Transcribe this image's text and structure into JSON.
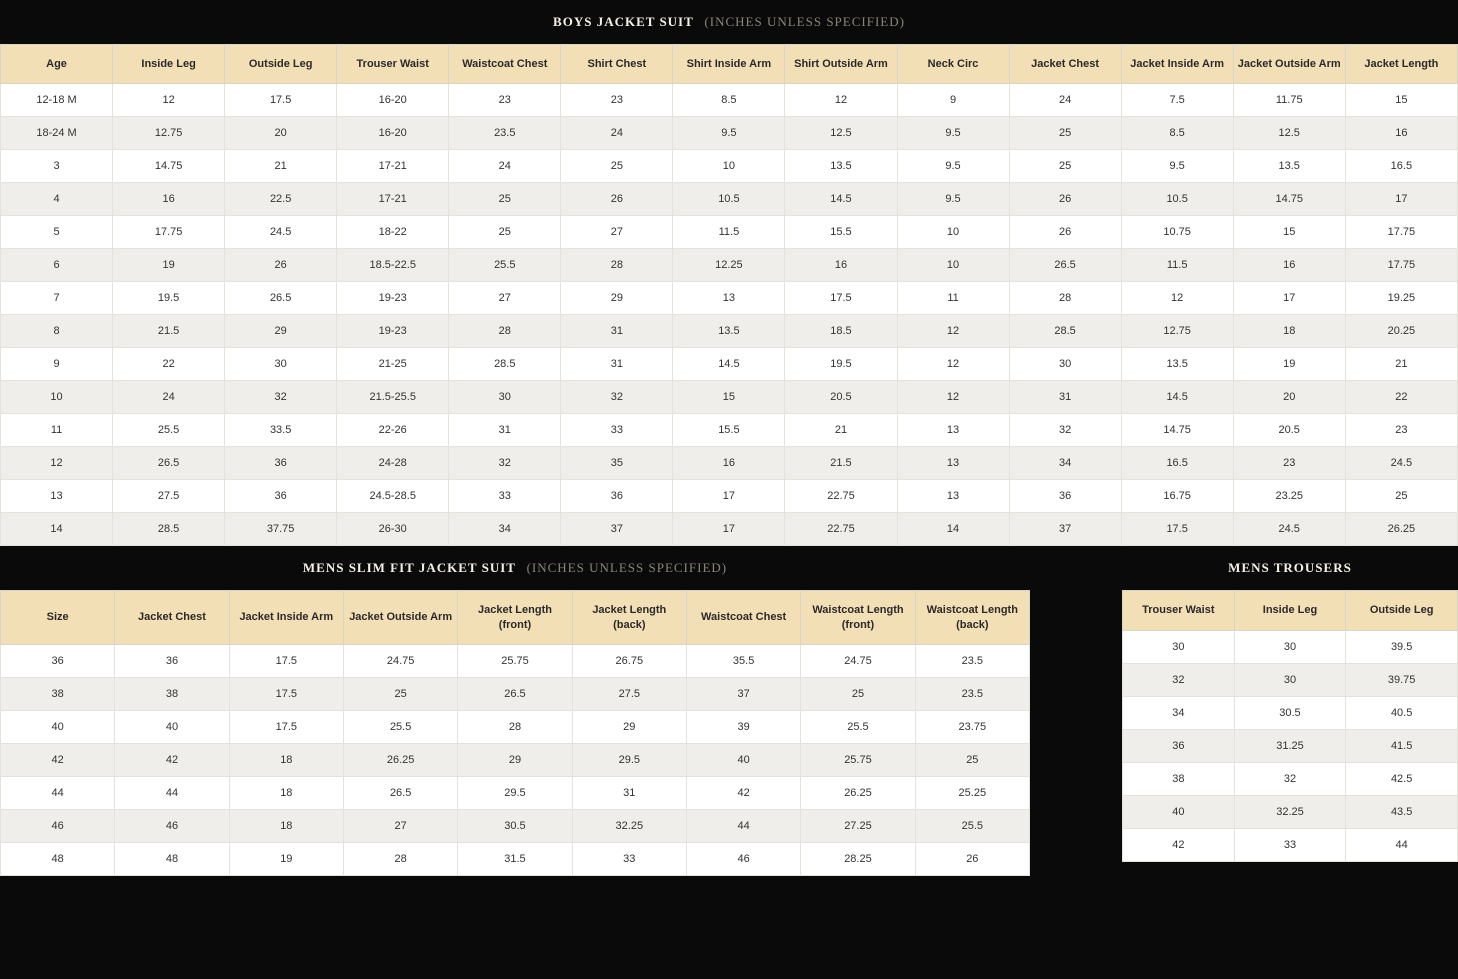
{
  "boys": {
    "title": "BOYS JACKET SUIT",
    "subtitle": "(INCHES UNLESS SPECIFIED)",
    "columns": [
      "Age",
      "Inside Leg",
      "Outside Leg",
      "Trouser Waist",
      "Waistcoat Chest",
      "Shirt Chest",
      "Shirt Inside Arm",
      "Shirt Outside Arm",
      "Neck Circ",
      "Jacket Chest",
      "Jacket Inside Arm",
      "Jacket Outside Arm",
      "Jacket Length"
    ],
    "rows": [
      [
        "12-18 M",
        "12",
        "17.5",
        "16-20",
        "23",
        "23",
        "8.5",
        "12",
        "9",
        "24",
        "7.5",
        "11.75",
        "15"
      ],
      [
        "18-24 M",
        "12.75",
        "20",
        "16-20",
        "23.5",
        "24",
        "9.5",
        "12.5",
        "9.5",
        "25",
        "8.5",
        "12.5",
        "16"
      ],
      [
        "3",
        "14.75",
        "21",
        "17-21",
        "24",
        "25",
        "10",
        "13.5",
        "9.5",
        "25",
        "9.5",
        "13.5",
        "16.5"
      ],
      [
        "4",
        "16",
        "22.5",
        "17-21",
        "25",
        "26",
        "10.5",
        "14.5",
        "9.5",
        "26",
        "10.5",
        "14.75",
        "17"
      ],
      [
        "5",
        "17.75",
        "24.5",
        "18-22",
        "25",
        "27",
        "11.5",
        "15.5",
        "10",
        "26",
        "10.75",
        "15",
        "17.75"
      ],
      [
        "6",
        "19",
        "26",
        "18.5-22.5",
        "25.5",
        "28",
        "12.25",
        "16",
        "10",
        "26.5",
        "11.5",
        "16",
        "17.75"
      ],
      [
        "7",
        "19.5",
        "26.5",
        "19-23",
        "27",
        "29",
        "13",
        "17.5",
        "11",
        "28",
        "12",
        "17",
        "19.25"
      ],
      [
        "8",
        "21.5",
        "29",
        "19-23",
        "28",
        "31",
        "13.5",
        "18.5",
        "12",
        "28.5",
        "12.75",
        "18",
        "20.25"
      ],
      [
        "9",
        "22",
        "30",
        "21-25",
        "28.5",
        "31",
        "14.5",
        "19.5",
        "12",
        "30",
        "13.5",
        "19",
        "21"
      ],
      [
        "10",
        "24",
        "32",
        "21.5-25.5",
        "30",
        "32",
        "15",
        "20.5",
        "12",
        "31",
        "14.5",
        "20",
        "22"
      ],
      [
        "11",
        "25.5",
        "33.5",
        "22-26",
        "31",
        "33",
        "15.5",
        "21",
        "13",
        "32",
        "14.75",
        "20.5",
        "23"
      ],
      [
        "12",
        "26.5",
        "36",
        "24-28",
        "32",
        "35",
        "16",
        "21.5",
        "13",
        "34",
        "16.5",
        "23",
        "24.5"
      ],
      [
        "13",
        "27.5",
        "36",
        "24.5-28.5",
        "33",
        "36",
        "17",
        "22.75",
        "13",
        "36",
        "16.75",
        "23.25",
        "25"
      ],
      [
        "14",
        "28.5",
        "37.75",
        "26-30",
        "34",
        "37",
        "17",
        "22.75",
        "14",
        "37",
        "17.5",
        "24.5",
        "26.25"
      ]
    ]
  },
  "mens_slim": {
    "title": "MENS SLIM FIT JACKET SUIT",
    "subtitle": "(INCHES UNLESS SPECIFIED)",
    "columns": [
      "Size",
      "Jacket Chest",
      "Jacket Inside Arm",
      "Jacket Outside Arm",
      "Jacket Length (front)",
      "Jacket Length (back)",
      "Waistcoat Chest",
      "Waistcoat Length (front)",
      "Waistcoat Length (back)"
    ],
    "rows": [
      [
        "36",
        "36",
        "17.5",
        "24.75",
        "25.75",
        "26.75",
        "35.5",
        "24.75",
        "23.5"
      ],
      [
        "38",
        "38",
        "17.5",
        "25",
        "26.5",
        "27.5",
        "37",
        "25",
        "23.5"
      ],
      [
        "40",
        "40",
        "17.5",
        "25.5",
        "28",
        "29",
        "39",
        "25.5",
        "23.75"
      ],
      [
        "42",
        "42",
        "18",
        "26.25",
        "29",
        "29.5",
        "40",
        "25.75",
        "25"
      ],
      [
        "44",
        "44",
        "18",
        "26.5",
        "29.5",
        "31",
        "42",
        "26.25",
        "25.25"
      ],
      [
        "46",
        "46",
        "18",
        "27",
        "30.5",
        "32.25",
        "44",
        "27.25",
        "25.5"
      ],
      [
        "48",
        "48",
        "19",
        "28",
        "31.5",
        "33",
        "46",
        "28.25",
        "26"
      ]
    ]
  },
  "mens_trousers": {
    "title": "MENS TROUSERS",
    "columns": [
      "Trouser Waist",
      "Inside Leg",
      "Outside Leg"
    ],
    "rows": [
      [
        "30",
        "30",
        "39.5"
      ],
      [
        "32",
        "30",
        "39.75"
      ],
      [
        "34",
        "30.5",
        "40.5"
      ],
      [
        "36",
        "31.25",
        "41.5"
      ],
      [
        "38",
        "32",
        "42.5"
      ],
      [
        "40",
        "32.25",
        "43.5"
      ],
      [
        "42",
        "33",
        "44"
      ]
    ]
  },
  "colors": {
    "header_bg": "#0a0a0a",
    "header_text": "#f5f0e5",
    "subtitle_text": "#8a8577",
    "th_bg": "#f3dfb5",
    "row_alt_bg": "#efeeea",
    "border": "#e5e2da"
  }
}
